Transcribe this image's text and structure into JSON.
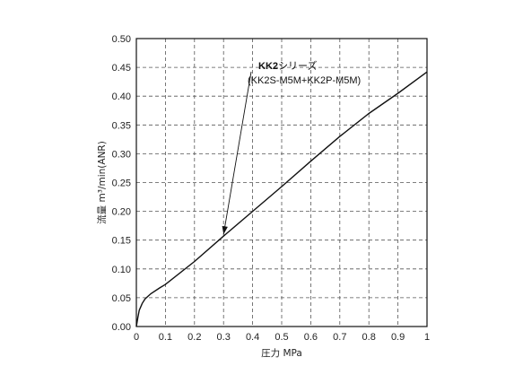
{
  "chart_data": {
    "type": "line",
    "title": "",
    "xlabel": "圧力 MPa",
    "ylabel": "流量 m³/min(ANR)",
    "xlim": [
      0,
      1
    ],
    "ylim": [
      0,
      0.5
    ],
    "x_ticks": [
      "0",
      "0.1",
      "0.2",
      "0.3",
      "0.4",
      "0.5",
      "0.6",
      "0.7",
      "0.8",
      "0.9",
      "1"
    ],
    "y_ticks": [
      "0.00",
      "0.05",
      "0.10",
      "0.15",
      "0.20",
      "0.25",
      "0.30",
      "0.35",
      "0.40",
      "0.45",
      "0.50"
    ],
    "grid": true,
    "series": [
      {
        "name": "KK2シリーズ (KK2S-M5M+KK2P-M5M)",
        "x": [
          0,
          0.005,
          0.01,
          0.02,
          0.03,
          0.05,
          0.08,
          0.1,
          0.2,
          0.3,
          0.4,
          0.5,
          0.6,
          0.7,
          0.8,
          0.9,
          1.0
        ],
        "y": [
          0,
          0.015,
          0.028,
          0.04,
          0.048,
          0.057,
          0.067,
          0.073,
          0.113,
          0.157,
          0.2,
          0.243,
          0.287,
          0.33,
          0.37,
          0.405,
          0.442
        ]
      }
    ],
    "annotation": {
      "bold": "KK2",
      "text": "シリーズ",
      "line2": "(KK2S-M5M+KK2P-M5M)",
      "point": [
        0.3,
        0.16
      ]
    }
  }
}
